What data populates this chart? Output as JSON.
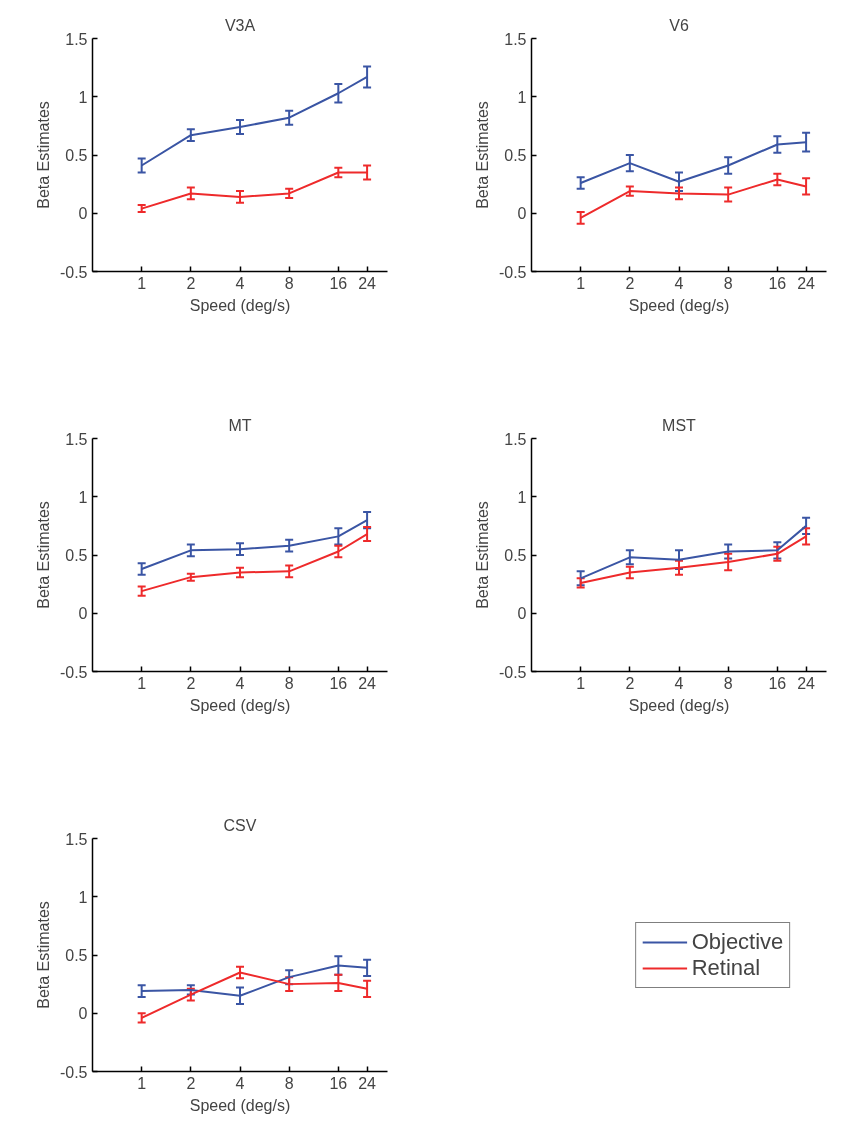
{
  "chart_data": [
    {
      "type": "line",
      "title": "V3A",
      "xlabel": "Speed (deg/s)",
      "ylabel": "Beta Estimates",
      "x": [
        1,
        2,
        4,
        8,
        16,
        24
      ],
      "log": "x",
      "xlim": [
        0.5,
        32
      ],
      "xticks": [
        1,
        2,
        4,
        8,
        16,
        24
      ],
      "ylim": [
        -0.5,
        1.5
      ],
      "yticks": [
        -0.5,
        0,
        0.5,
        1,
        1.5
      ],
      "grid": false,
      "legend": false,
      "marker": "none",
      "line_style": "solid",
      "series": [
        {
          "color": "#3a55a4",
          "values": [
            0.41,
            0.67,
            0.74,
            0.82,
            1.03,
            1.17
          ],
          "errors": [
            0.06,
            0.05,
            0.06,
            0.06,
            0.08,
            0.09
          ]
        },
        {
          "color": "#ee2a2b",
          "values": [
            0.04,
            0.17,
            0.14,
            0.17,
            0.35,
            0.35
          ],
          "errors": [
            0.03,
            0.05,
            0.05,
            0.04,
            0.04,
            0.06
          ]
        }
      ]
    },
    {
      "type": "line",
      "title": "V6",
      "xlabel": "Speed (deg/s)",
      "ylabel": "Beta Estimates",
      "x": [
        1,
        2,
        4,
        8,
        16,
        24
      ],
      "log": "x",
      "xlim": [
        0.5,
        32
      ],
      "xticks": [
        1,
        2,
        4,
        8,
        16,
        24
      ],
      "ylim": [
        -0.5,
        1.5
      ],
      "yticks": [
        -0.5,
        0,
        0.5,
        1,
        1.5
      ],
      "grid": false,
      "legend": false,
      "marker": "none",
      "line_style": "solid",
      "series": [
        {
          "color": "#3a55a4",
          "values": [
            0.26,
            0.43,
            0.27,
            0.41,
            0.59,
            0.61
          ],
          "errors": [
            0.05,
            0.07,
            0.08,
            0.07,
            0.07,
            0.08
          ]
        },
        {
          "color": "#ee2a2b",
          "values": [
            -0.04,
            0.19,
            0.17,
            0.16,
            0.29,
            0.23
          ],
          "errors": [
            0.05,
            0.04,
            0.05,
            0.06,
            0.05,
            0.07
          ]
        }
      ]
    },
    {
      "type": "line",
      "title": "MT",
      "xlabel": "Speed (deg/s)",
      "ylabel": "Beta Estimates",
      "x": [
        1,
        2,
        4,
        8,
        16,
        24
      ],
      "log": "x",
      "xlim": [
        0.5,
        32
      ],
      "xticks": [
        1,
        2,
        4,
        8,
        16,
        24
      ],
      "ylim": [
        -0.5,
        1.5
      ],
      "yticks": [
        -0.5,
        0,
        0.5,
        1,
        1.5
      ],
      "grid": false,
      "legend": false,
      "marker": "none",
      "line_style": "solid",
      "series": [
        {
          "color": "#3a55a4",
          "values": [
            0.38,
            0.54,
            0.55,
            0.58,
            0.66,
            0.8
          ],
          "errors": [
            0.05,
            0.05,
            0.05,
            0.05,
            0.07,
            0.07
          ]
        },
        {
          "color": "#ee2a2b",
          "values": [
            0.19,
            0.31,
            0.35,
            0.36,
            0.53,
            0.68
          ],
          "errors": [
            0.04,
            0.03,
            0.04,
            0.05,
            0.05,
            0.06
          ]
        }
      ]
    },
    {
      "type": "line",
      "title": "MST",
      "xlabel": "Speed (deg/s)",
      "ylabel": "Beta Estimates",
      "x": [
        1,
        2,
        4,
        8,
        16,
        24
      ],
      "log": "x",
      "xlim": [
        0.5,
        32
      ],
      "xticks": [
        1,
        2,
        4,
        8,
        16,
        24
      ],
      "ylim": [
        -0.5,
        1.5
      ],
      "yticks": [
        -0.5,
        0,
        0.5,
        1,
        1.5
      ],
      "grid": false,
      "legend": false,
      "marker": "none",
      "line_style": "solid",
      "series": [
        {
          "color": "#3a55a4",
          "values": [
            0.3,
            0.48,
            0.46,
            0.53,
            0.54,
            0.75
          ],
          "errors": [
            0.06,
            0.06,
            0.08,
            0.06,
            0.07,
            0.07
          ]
        },
        {
          "color": "#ee2a2b",
          "values": [
            0.26,
            0.35,
            0.39,
            0.44,
            0.51,
            0.66
          ],
          "errors": [
            0.04,
            0.05,
            0.06,
            0.07,
            0.06,
            0.07
          ]
        }
      ]
    },
    {
      "type": "line",
      "title": "CSV",
      "xlabel": "Speed (deg/s)",
      "ylabel": "Beta Estimates",
      "x": [
        1,
        2,
        4,
        8,
        16,
        24
      ],
      "log": "x",
      "xlim": [
        0.5,
        32
      ],
      "xticks": [
        1,
        2,
        4,
        8,
        16,
        24
      ],
      "ylim": [
        -0.5,
        1.5
      ],
      "yticks": [
        -0.5,
        0,
        0.5,
        1,
        1.5
      ],
      "grid": false,
      "legend": "right",
      "marker": "none",
      "line_style": "solid",
      "series": [
        {
          "name": "Objective",
          "color": "#3a55a4",
          "values": [
            0.19,
            0.2,
            0.15,
            0.31,
            0.41,
            0.39
          ],
          "errors": [
            0.05,
            0.04,
            0.07,
            0.06,
            0.08,
            0.07
          ]
        },
        {
          "name": "Retinal",
          "color": "#ee2a2b",
          "values": [
            -0.04,
            0.16,
            0.35,
            0.25,
            0.26,
            0.21
          ],
          "errors": [
            0.04,
            0.05,
            0.05,
            0.06,
            0.07,
            0.07
          ]
        }
      ]
    }
  ]
}
